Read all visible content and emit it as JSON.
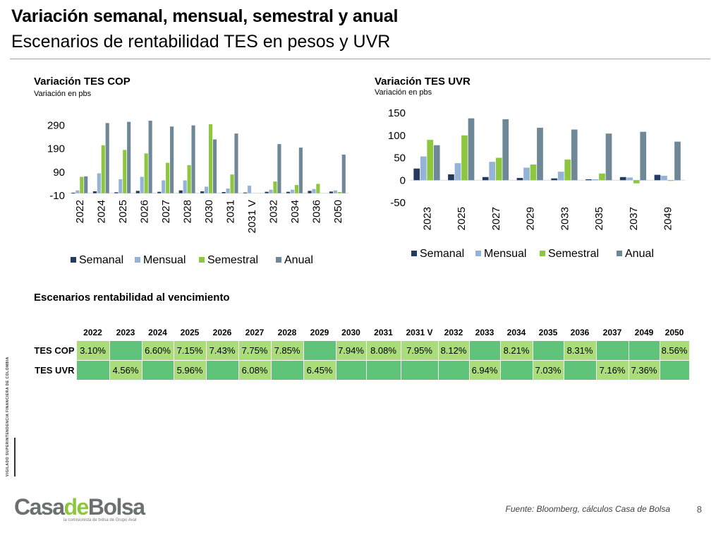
{
  "header": {
    "title": "Variación semanal, mensual, semestral y anual",
    "subtitle": "Escenarios de rentabilidad TES en pesos y UVR"
  },
  "colors": {
    "accent": "#8dc63f",
    "semanal": "#243a5e",
    "mensual": "#95b3d7",
    "semestral": "#8dc63f",
    "anual": "#6e8898",
    "cell_dark": "#5fc47a",
    "cell_light": "#a8dd7a"
  },
  "chart_cop": {
    "title": "Variación TES COP",
    "subtitle": "Variación en pbs"
  },
  "chart_uvr": {
    "title": "Variación TES UVR",
    "subtitle": "Variación en pbs"
  },
  "chart_data": [
    {
      "type": "bar",
      "title": "Variación TES COP",
      "subtitle": "Variación en pbs",
      "categories": [
        "2022",
        "2024",
        "2025",
        "2026",
        "2027",
        "2028",
        "2030",
        "2031",
        "2031 V",
        "2032",
        "2034",
        "2036",
        "2050"
      ],
      "series": [
        {
          "name": "Semanal",
          "values": [
            2,
            8,
            4,
            10,
            6,
            12,
            8,
            5,
            3,
            6,
            6,
            10,
            7
          ]
        },
        {
          "name": "Mensual",
          "values": [
            12,
            85,
            60,
            70,
            55,
            55,
            28,
            20,
            32,
            15,
            15,
            18,
            12
          ]
        },
        {
          "name": "Semestral",
          "values": [
            70,
            205,
            185,
            170,
            130,
            120,
            295,
            80,
            null,
            50,
            35,
            40,
            5
          ]
        },
        {
          "name": "Anual",
          "values": [
            72,
            300,
            305,
            310,
            285,
            290,
            230,
            255,
            null,
            210,
            195,
            null,
            165
          ]
        }
      ],
      "yticks": [
        -10,
        90,
        190,
        290
      ],
      "ylim": [
        -10,
        340
      ],
      "legend": "bottom"
    },
    {
      "type": "bar",
      "title": "Variación TES UVR",
      "subtitle": "Variación en pbs",
      "categories": [
        "2023",
        "2025",
        "2027",
        "2029",
        "2033",
        "2035",
        "2037",
        "2049"
      ],
      "series": [
        {
          "name": "Semanal",
          "values": [
            26,
            13,
            7,
            5,
            4,
            2,
            7,
            12
          ]
        },
        {
          "name": "Mensual",
          "values": [
            53,
            38,
            41,
            28,
            19,
            2,
            6,
            10
          ]
        },
        {
          "name": "Semestral",
          "values": [
            90,
            100,
            50,
            35,
            46,
            15,
            -7,
            0
          ]
        },
        {
          "name": "Anual",
          "values": [
            78,
            138,
            136,
            117,
            113,
            104,
            108,
            86
          ]
        }
      ],
      "yticks": [
        -50,
        0,
        50,
        100,
        150
      ],
      "ylim": [
        -50,
        150
      ],
      "legend": "bottom"
    }
  ],
  "yield_table": {
    "title": "Escenarios rentabilidad al vencimiento",
    "years": [
      "2022",
      "2023",
      "2024",
      "2025",
      "2026",
      "2027",
      "2028",
      "2029",
      "2030",
      "2031",
      "2031 V",
      "2032",
      "2033",
      "2034",
      "2035",
      "2036",
      "2037",
      "2049",
      "2050"
    ],
    "rows": [
      {
        "label": "TES COP",
        "cells": [
          {
            "v": "3.10%",
            "c": "light"
          },
          {
            "v": "",
            "c": "dark"
          },
          {
            "v": "6.60%",
            "c": "light"
          },
          {
            "v": "7.15%",
            "c": "light"
          },
          {
            "v": "7.43%",
            "c": "light"
          },
          {
            "v": "7.75%",
            "c": "light"
          },
          {
            "v": "7.85%",
            "c": "light"
          },
          {
            "v": "",
            "c": "dark"
          },
          {
            "v": "7.94%",
            "c": "light"
          },
          {
            "v": "8.08%",
            "c": "light"
          },
          {
            "v": "7.95%",
            "c": "light"
          },
          {
            "v": "8.12%",
            "c": "light"
          },
          {
            "v": "",
            "c": "dark"
          },
          {
            "v": "8.21%",
            "c": "light"
          },
          {
            "v": "",
            "c": "dark"
          },
          {
            "v": "8.31%",
            "c": "light"
          },
          {
            "v": "",
            "c": "dark"
          },
          {
            "v": "",
            "c": "dark"
          },
          {
            "v": "8.56%",
            "c": "light"
          }
        ]
      },
      {
        "label": "TES UVR",
        "cells": [
          {
            "v": "",
            "c": "dark"
          },
          {
            "v": "4.56%",
            "c": "light"
          },
          {
            "v": "",
            "c": "dark"
          },
          {
            "v": "5.96%",
            "c": "light"
          },
          {
            "v": "",
            "c": "dark"
          },
          {
            "v": "6.08%",
            "c": "light"
          },
          {
            "v": "",
            "c": "dark"
          },
          {
            "v": "6.45%",
            "c": "light"
          },
          {
            "v": "",
            "c": "dark"
          },
          {
            "v": "",
            "c": "dark"
          },
          {
            "v": "",
            "c": "dark"
          },
          {
            "v": "",
            "c": "dark"
          },
          {
            "v": "6.94%",
            "c": "light"
          },
          {
            "v": "",
            "c": "dark"
          },
          {
            "v": "7.03%",
            "c": "light"
          },
          {
            "v": "",
            "c": "dark"
          },
          {
            "v": "7.16%",
            "c": "light"
          },
          {
            "v": "7.36%",
            "c": "light"
          },
          {
            "v": "",
            "c": "dark"
          }
        ]
      }
    ]
  },
  "vigilado": {
    "text": "VIGILADO SUPERINTENDENCIA FINANCIERA DE COLOMBIA"
  },
  "footer": {
    "logo_casa": "Casa",
    "logo_de": "de",
    "logo_bolsa": "Bolsa",
    "logo_tagline": "la comisionista de bolsa de Grupo Aval",
    "source": "Fuente: Bloomberg, cálculos Casa de Bolsa",
    "page_number": "8"
  }
}
